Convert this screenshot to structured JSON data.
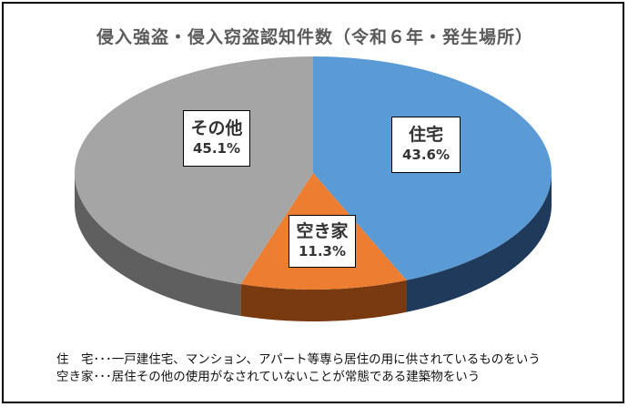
{
  "chart_data": {
    "type": "pie",
    "title": "侵入強盗・侵入窃盗認知件数（令和６年・発生場所）",
    "slices": [
      {
        "name": "住宅",
        "value": 43.6,
        "label": "43.6%",
        "top_color": "#5b9bd5",
        "side_color": "#1f3a5a"
      },
      {
        "name": "空き家",
        "value": 11.3,
        "label": "11.3%",
        "top_color": "#ed7d31",
        "side_color": "#7a3a10"
      },
      {
        "name": "その他",
        "value": 45.1,
        "label": "45.1%",
        "top_color": "#a5a5a5",
        "side_color": "#5f5f5f"
      }
    ],
    "style": "3d-pie",
    "legend": "none"
  },
  "notes": [
    "住　宅･･･一戸建住宅、マンション、アパート等専ら居住の用に供されているものをいう",
    "空き家･･･居住その他の使用がなされていないことが常態である建築物をいう"
  ]
}
